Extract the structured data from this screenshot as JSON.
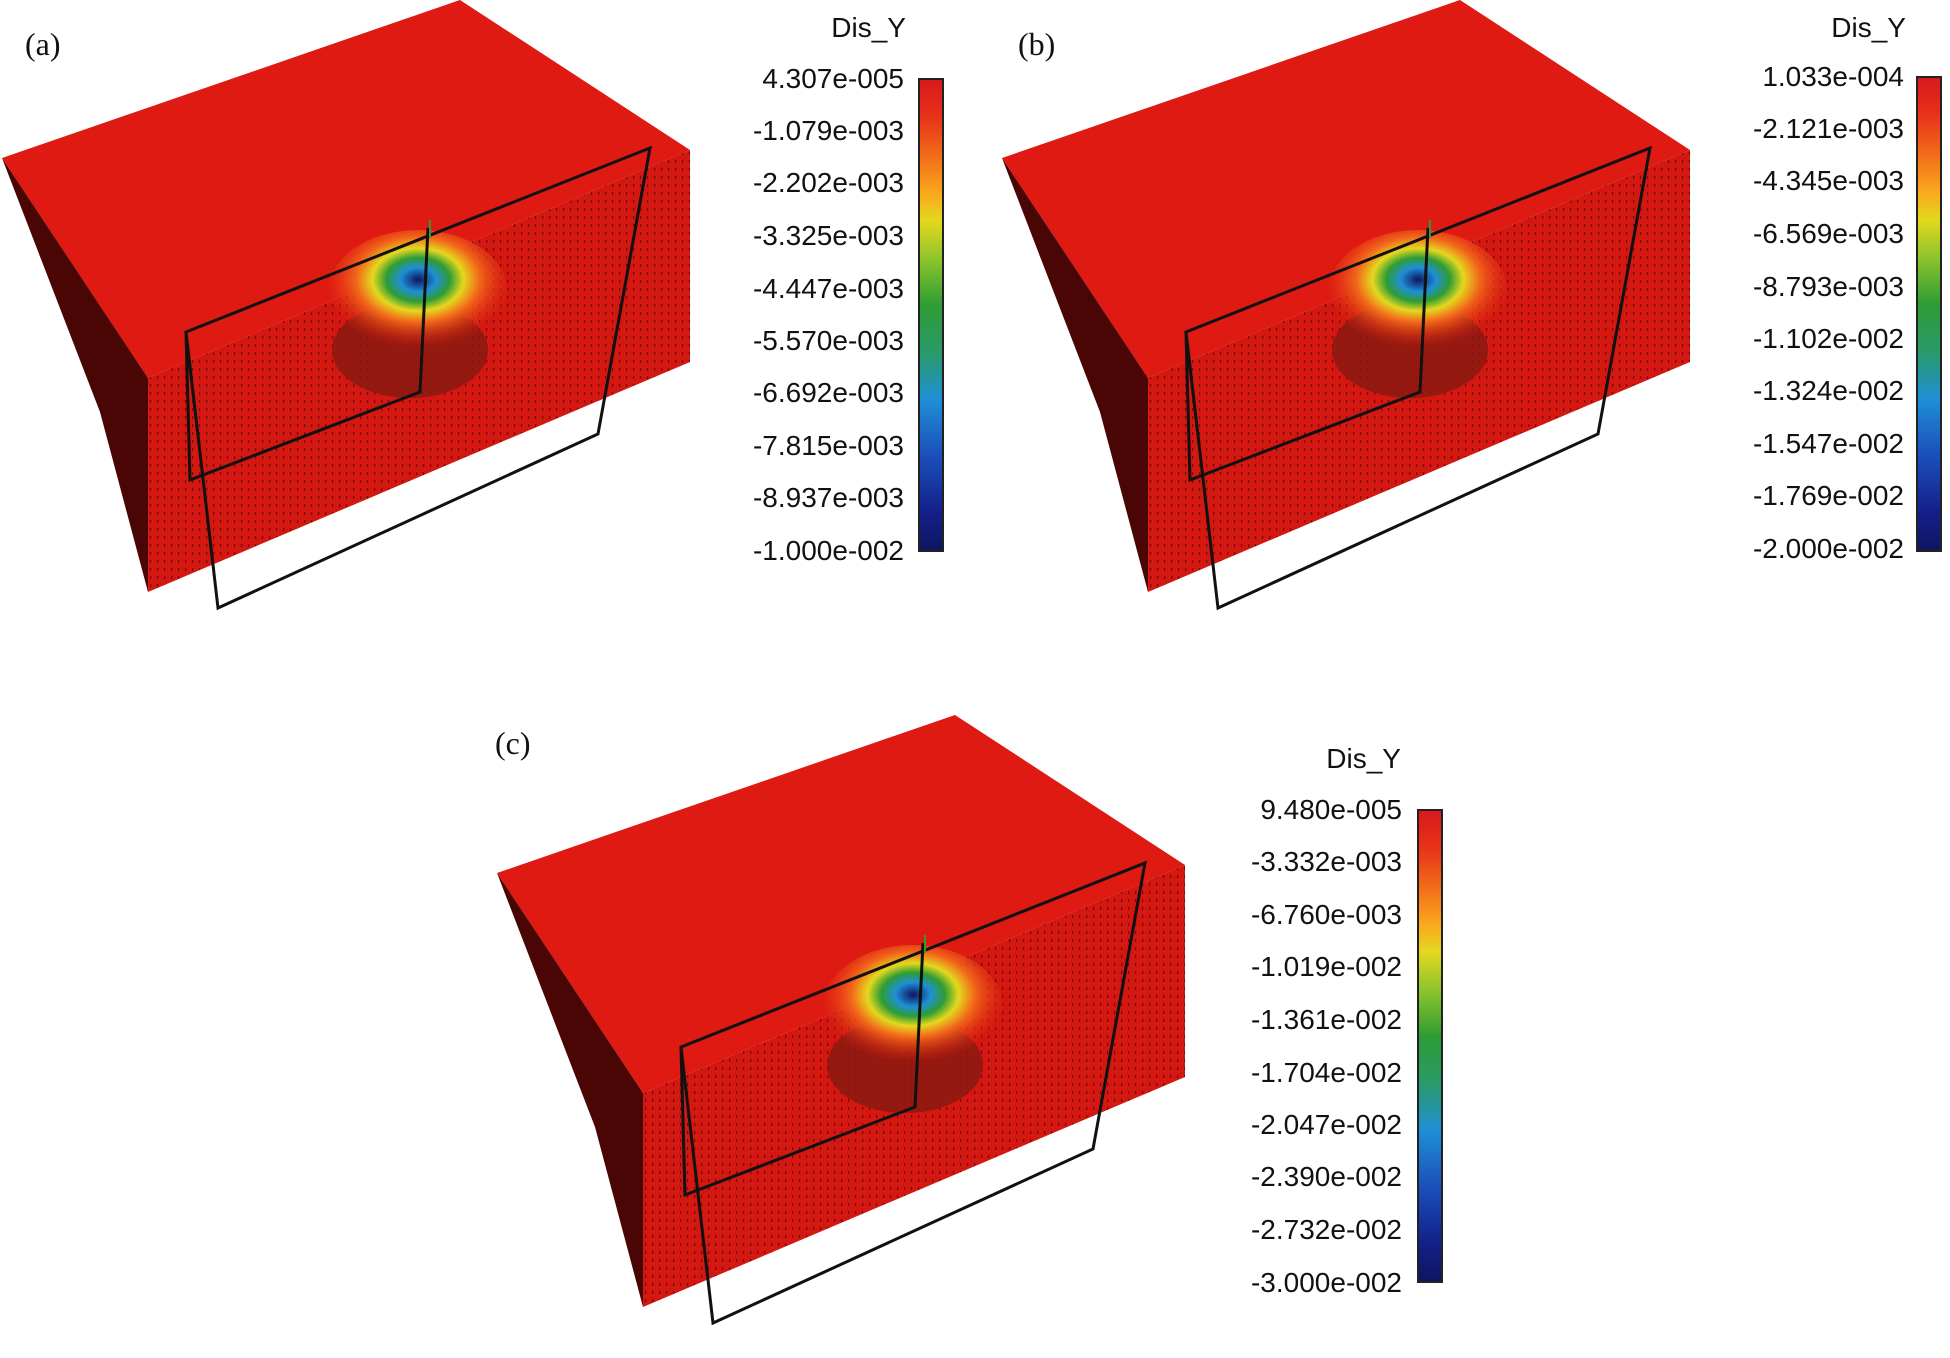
{
  "panels": [
    {
      "id": "a",
      "label": "(a)",
      "legend": {
        "title": "Dis_Y",
        "ticks": [
          "4.307e-005",
          "-1.079e-003",
          "-2.202e-003",
          "-3.325e-003",
          "-4.447e-003",
          "-5.570e-003",
          "-6.692e-003",
          "-7.815e-003",
          "-8.937e-003",
          "-1.000e-002"
        ]
      }
    },
    {
      "id": "b",
      "label": "(b)",
      "legend": {
        "title": "Dis_Y",
        "ticks": [
          "1.033e-004",
          "-2.121e-003",
          "-4.345e-003",
          "-6.569e-003",
          "-8.793e-003",
          "-1.102e-002",
          "-1.324e-002",
          "-1.547e-002",
          "-1.769e-002",
          "-2.000e-002"
        ]
      }
    },
    {
      "id": "c",
      "label": "(c)",
      "legend": {
        "title": "Dis_Y",
        "ticks": [
          "9.480e-005",
          "-3.332e-003",
          "-6.760e-003",
          "-1.019e-002",
          "-1.361e-002",
          "-1.704e-002",
          "-2.047e-002",
          "-2.390e-002",
          "-2.732e-002",
          "-3.000e-002"
        ]
      }
    }
  ],
  "colors": {
    "top_face": "#de1a12",
    "front_face": "#d41710",
    "side_face": "#4a0505",
    "bulb": "#8a1a10",
    "outline": "#111111"
  }
}
